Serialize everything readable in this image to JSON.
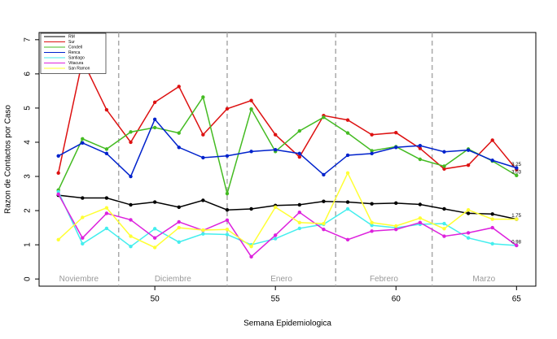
{
  "chart_data": {
    "type": "line",
    "x_label": "Semana Epidemiologica",
    "y_label": "Razon de Contactos por Caso",
    "x": [
      46,
      47,
      48,
      49,
      50,
      51,
      52,
      53,
      54,
      55,
      56,
      57,
      58,
      59,
      60,
      61,
      62,
      63,
      64,
      65
    ],
    "xlim": [
      45.2,
      65.8
    ],
    "xticks": [
      50,
      55,
      60,
      65
    ],
    "ylim": [
      -0.21,
      7.21
    ],
    "yticks": [
      0,
      1,
      2,
      3,
      4,
      5,
      6,
      7
    ],
    "periods": [
      "Noviembre",
      "Diciembre",
      "Enero",
      "Febrero",
      "Marzo"
    ],
    "period_breaks": [
      48.5,
      53,
      57.5,
      61.5
    ],
    "legend_position": "top-left",
    "series": [
      {
        "name": "RM",
        "color": "#000000",
        "values": [
          2.45,
          2.37,
          2.37,
          2.17,
          2.25,
          2.1,
          2.3,
          2.02,
          2.05,
          2.15,
          2.17,
          2.27,
          2.25,
          2.2,
          2.22,
          2.18,
          2.05,
          1.92,
          1.9,
          1.75
        ],
        "value_labels": [
          null,
          null,
          null,
          null,
          null,
          null,
          null,
          null,
          null,
          null,
          null,
          null,
          null,
          null,
          null,
          null,
          null,
          null,
          null,
          "1.75"
        ]
      },
      {
        "name": "Sur",
        "color": "#dd1111",
        "values": [
          3.1,
          6.4,
          4.95,
          4.0,
          5.17,
          5.63,
          4.22,
          4.98,
          5.22,
          4.22,
          3.57,
          4.78,
          4.65,
          4.22,
          4.28,
          3.82,
          3.22,
          3.33,
          4.06,
          3.2
        ]
      },
      {
        "name": "Condell",
        "color": "#44bb22",
        "values": [
          2.6,
          4.1,
          3.8,
          4.3,
          4.43,
          4.27,
          5.32,
          2.5,
          4.97,
          3.73,
          4.33,
          4.73,
          4.27,
          3.75,
          3.87,
          3.5,
          3.3,
          3.8,
          3.45,
          3.03
        ],
        "value_labels": [
          null,
          null,
          null,
          null,
          null,
          null,
          null,
          null,
          null,
          null,
          null,
          null,
          null,
          null,
          null,
          null,
          null,
          null,
          null,
          "3.03"
        ]
      },
      {
        "name": "Renca",
        "color": "#0022cc",
        "values": [
          3.6,
          3.98,
          3.67,
          3.0,
          4.67,
          3.85,
          3.55,
          3.6,
          3.73,
          3.78,
          3.67,
          3.05,
          3.62,
          3.67,
          3.85,
          3.9,
          3.72,
          3.77,
          3.47,
          3.25
        ],
        "value_labels": [
          null,
          null,
          null,
          null,
          null,
          null,
          null,
          null,
          null,
          null,
          null,
          null,
          null,
          null,
          null,
          null,
          null,
          null,
          null,
          "3.25"
        ]
      },
      {
        "name": "Santiago",
        "color": "#44eeee",
        "values": [
          2.55,
          1.03,
          1.48,
          0.95,
          1.47,
          1.08,
          1.32,
          1.3,
          1.0,
          1.18,
          1.48,
          1.6,
          2.05,
          1.57,
          1.5,
          1.6,
          1.62,
          1.2,
          1.03,
          0.98
        ]
      },
      {
        "name": "Vitacura",
        "color": "#dd22dd",
        "values": [
          2.48,
          1.2,
          1.92,
          1.73,
          1.2,
          1.67,
          1.42,
          1.72,
          0.65,
          1.28,
          1.95,
          1.45,
          1.15,
          1.4,
          1.45,
          1.65,
          1.25,
          1.35,
          1.5,
          0.98
        ],
        "value_labels": [
          null,
          null,
          null,
          null,
          null,
          null,
          null,
          null,
          null,
          null,
          null,
          null,
          null,
          null,
          null,
          null,
          null,
          null,
          null,
          "0.98"
        ]
      },
      {
        "name": "San Ramon",
        "color": "#ffff33",
        "values": [
          1.15,
          1.8,
          2.08,
          1.25,
          0.92,
          1.5,
          1.43,
          1.45,
          0.95,
          2.1,
          1.65,
          1.62,
          3.1,
          1.65,
          1.55,
          1.78,
          1.47,
          2.02,
          1.75,
          1.75
        ]
      }
    ]
  }
}
